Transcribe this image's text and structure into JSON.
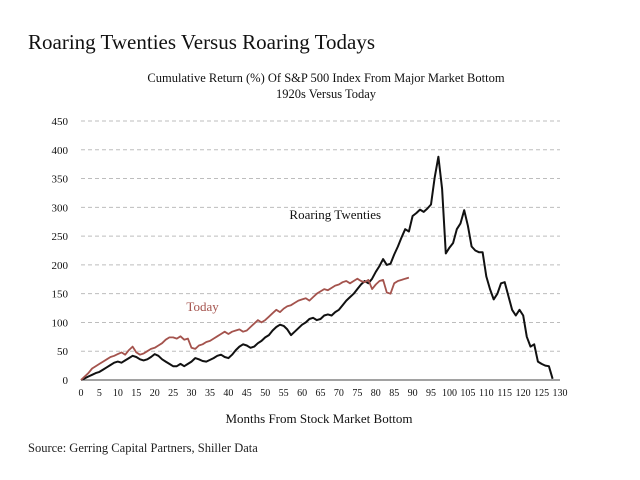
{
  "page": {
    "title": "Roaring Twenties Versus Roaring Todays",
    "source": "Source: Gerring Capital Partners, Shiller Data"
  },
  "chart_data": {
    "type": "line",
    "title": "Cumulative Return (%) Of S&P 500 Index From Major Market Bottom",
    "subtitle": "1920s Versus Today",
    "xlabel": "Months From Stock Market Bottom",
    "ylabel": "",
    "xlim": [
      0,
      130
    ],
    "ylim": [
      0,
      450
    ],
    "x_ticks": [
      0,
      5,
      10,
      15,
      20,
      25,
      30,
      35,
      40,
      45,
      50,
      55,
      60,
      65,
      70,
      75,
      80,
      85,
      90,
      95,
      100,
      105,
      110,
      115,
      120,
      125,
      130
    ],
    "y_ticks": [
      0,
      50,
      100,
      150,
      200,
      250,
      300,
      350,
      400,
      450
    ],
    "grid": "horizontal dashed",
    "legend": "inline labels",
    "colors": {
      "roaring_twenties": "#111111",
      "today": "#a4534d",
      "grid": "#bdbdbd"
    },
    "series": [
      {
        "name": "Roaring Twenties",
        "color": "#111111",
        "x": [
          0,
          1,
          2,
          3,
          4,
          5,
          6,
          7,
          8,
          9,
          10,
          11,
          12,
          13,
          14,
          15,
          16,
          17,
          18,
          19,
          20,
          21,
          22,
          23,
          24,
          25,
          26,
          27,
          28,
          29,
          30,
          31,
          32,
          33,
          34,
          35,
          36,
          37,
          38,
          39,
          40,
          41,
          42,
          43,
          44,
          45,
          46,
          47,
          48,
          49,
          50,
          51,
          52,
          53,
          54,
          55,
          56,
          57,
          58,
          59,
          60,
          61,
          62,
          63,
          64,
          65,
          66,
          67,
          68,
          69,
          70,
          71,
          72,
          73,
          74,
          75,
          76,
          77,
          78,
          79,
          80,
          81,
          82,
          83,
          84,
          85,
          86,
          87,
          88,
          89,
          90,
          91,
          92,
          93,
          94,
          95,
          96,
          97,
          98,
          99,
          100,
          101,
          102,
          103,
          104,
          105,
          106,
          107,
          108,
          109,
          110,
          111,
          112,
          113,
          114,
          115,
          116,
          117,
          118,
          119,
          120,
          121,
          122,
          123,
          124,
          125,
          126,
          127,
          128
        ],
        "values": [
          0,
          3,
          6,
          9,
          12,
          14,
          18,
          22,
          26,
          30,
          32,
          30,
          34,
          38,
          42,
          40,
          36,
          34,
          36,
          40,
          45,
          42,
          36,
          32,
          28,
          24,
          24,
          28,
          24,
          28,
          32,
          38,
          36,
          33,
          32,
          35,
          38,
          42,
          44,
          40,
          38,
          44,
          52,
          58,
          62,
          60,
          56,
          58,
          64,
          68,
          74,
          78,
          86,
          92,
          96,
          94,
          88,
          78,
          84,
          90,
          96,
          100,
          106,
          108,
          104,
          106,
          112,
          114,
          112,
          118,
          122,
          130,
          138,
          144,
          150,
          158,
          166,
          172,
          168,
          176,
          188,
          198,
          210,
          200,
          202,
          218,
          232,
          248,
          262,
          258,
          285,
          290,
          296,
          292,
          298,
          305,
          352,
          388,
          332,
          220,
          230,
          238,
          262,
          272,
          295,
          268,
          232,
          225,
          222,
          222,
          180,
          158,
          140,
          150,
          168,
          170,
          146,
          122,
          112,
          122,
          112,
          75,
          58,
          62,
          32,
          28,
          25,
          24,
          2
        ]
      },
      {
        "name": "Today",
        "color": "#a4534d",
        "x": [
          0,
          1,
          2,
          3,
          4,
          5,
          6,
          7,
          8,
          9,
          10,
          11,
          12,
          13,
          14,
          15,
          16,
          17,
          18,
          19,
          20,
          21,
          22,
          23,
          24,
          25,
          26,
          27,
          28,
          29,
          30,
          31,
          32,
          33,
          34,
          35,
          36,
          37,
          38,
          39,
          40,
          41,
          42,
          43,
          44,
          45,
          46,
          47,
          48,
          49,
          50,
          51,
          52,
          53,
          54,
          55,
          56,
          57,
          58,
          59,
          60,
          61,
          62,
          63,
          64,
          65,
          66,
          67,
          68,
          69,
          70,
          71,
          72,
          73,
          74,
          75,
          76,
          77,
          78,
          79,
          80,
          81,
          82,
          83,
          84,
          85,
          86,
          87,
          88,
          89
        ],
        "values": [
          0,
          6,
          12,
          20,
          24,
          28,
          32,
          36,
          40,
          42,
          45,
          48,
          44,
          52,
          58,
          48,
          44,
          46,
          50,
          54,
          56,
          60,
          64,
          70,
          74,
          74,
          72,
          76,
          70,
          72,
          56,
          54,
          60,
          62,
          66,
          68,
          72,
          76,
          80,
          84,
          80,
          84,
          86,
          88,
          84,
          86,
          92,
          98,
          104,
          100,
          104,
          110,
          116,
          122,
          118,
          124,
          128,
          130,
          134,
          138,
          140,
          142,
          138,
          144,
          150,
          154,
          158,
          156,
          160,
          164,
          166,
          170,
          172,
          168,
          172,
          176,
          172,
          170,
          174,
          158,
          166,
          172,
          174,
          152,
          150,
          168,
          172,
          174,
          176,
          178
        ]
      }
    ],
    "annotations": [
      {
        "text": "Roaring Twenties",
        "x": 69,
        "y": 280,
        "color": "#111111"
      },
      {
        "text": "Today",
        "x": 33,
        "y": 120,
        "color": "#a4534d"
      }
    ]
  }
}
